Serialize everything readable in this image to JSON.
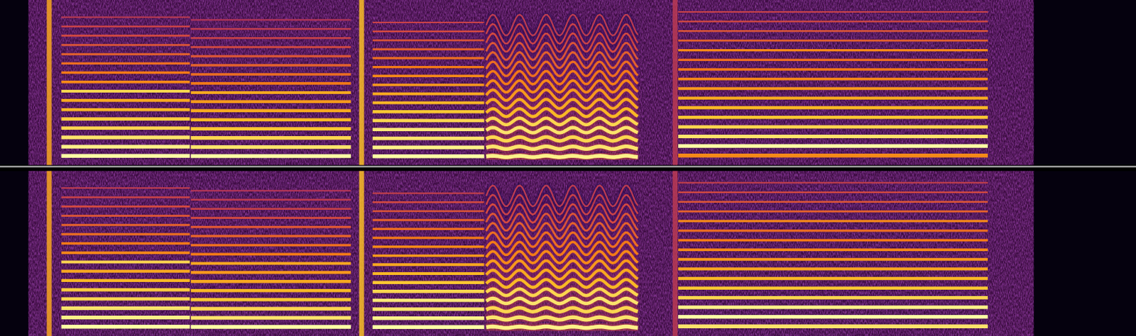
{
  "chart_data": [
    {
      "type": "spectrogram",
      "xlim": [
        0,
        1
      ],
      "ylim": [
        0,
        1
      ],
      "tick_labels": false,
      "noise": [
        {
          "start": 0.025,
          "end": 0.91,
          "level": 0.3
        }
      ],
      "transients": [
        {
          "x": 0.043,
          "level": 0.8
        },
        {
          "x": 0.318,
          "level": 0.85
        },
        {
          "x": 0.594,
          "level": 0.5
        }
      ],
      "notes": [
        {
          "start": 0.054,
          "end": 0.168,
          "f0": 0.056,
          "vibrato": 0,
          "levels": [
            1,
            0.95,
            0.9,
            0.85,
            0.82,
            0.75,
            0.7,
            0.85,
            0.6,
            0.55,
            0.5,
            0.45,
            0.4,
            0.35,
            0.3,
            0.25
          ]
        },
        {
          "start": 0.168,
          "end": 0.31,
          "f0": 0.055,
          "vibrato": 0,
          "levels": [
            1,
            0.9,
            0.85,
            0.8,
            0.75,
            0.7,
            0.65,
            0.7,
            0.55,
            0.5,
            0.45,
            0.4,
            0.35,
            0.3,
            0.25,
            0.2
          ]
        },
        {
          "start": 0.328,
          "end": 0.428,
          "f0": 0.054,
          "vibrato": 0,
          "levels": [
            1,
            0.95,
            0.9,
            0.92,
            0.85,
            0.8,
            0.75,
            0.7,
            0.65,
            0.6,
            0.55,
            0.5,
            0.45,
            0.4,
            0.35,
            0.3
          ]
        },
        {
          "start": 0.428,
          "end": 0.562,
          "f0": 0.053,
          "vibrato": 0.004,
          "levels": [
            0.95,
            0.9,
            0.85,
            0.9,
            0.85,
            0.75,
            0.7,
            0.65,
            0.6,
            0.55,
            0.5,
            0.45,
            0.4,
            0.35,
            0.3,
            0.25
          ]
        },
        {
          "start": 0.597,
          "end": 0.87,
          "f0": 0.058,
          "vibrato": 0,
          "levels": [
            0.6,
            1,
            0.9,
            0.85,
            0.8,
            0.75,
            0.7,
            0.65,
            0.6,
            0.55,
            0.5,
            0.6,
            0.45,
            0.4,
            0.35,
            0.3
          ]
        }
      ]
    },
    {
      "type": "spectrogram",
      "xlim": [
        0,
        1
      ],
      "ylim": [
        0,
        1
      ],
      "tick_labels": false,
      "noise": [
        {
          "start": 0.025,
          "end": 0.91,
          "level": 0.3
        }
      ],
      "transients": [
        {
          "x": 0.043,
          "level": 0.8
        },
        {
          "x": 0.318,
          "level": 0.85
        },
        {
          "x": 0.594,
          "level": 0.5
        }
      ],
      "notes": [
        {
          "start": 0.054,
          "end": 0.168,
          "f0": 0.056,
          "vibrato": 0,
          "levels": [
            1,
            0.95,
            0.9,
            0.85,
            0.82,
            0.75,
            0.7,
            0.85,
            0.6,
            0.55,
            0.5,
            0.45,
            0.4,
            0.35,
            0.3,
            0.25
          ]
        },
        {
          "start": 0.168,
          "end": 0.31,
          "f0": 0.055,
          "vibrato": 0,
          "levels": [
            1,
            0.9,
            0.85,
            0.8,
            0.75,
            0.7,
            0.65,
            0.7,
            0.55,
            0.5,
            0.45,
            0.4,
            0.35,
            0.3,
            0.25,
            0.2
          ]
        },
        {
          "start": 0.328,
          "end": 0.428,
          "f0": 0.054,
          "vibrato": 0,
          "levels": [
            1,
            0.95,
            0.9,
            0.92,
            0.85,
            0.8,
            0.75,
            0.7,
            0.65,
            0.6,
            0.55,
            0.5,
            0.45,
            0.4,
            0.35,
            0.3
          ]
        },
        {
          "start": 0.428,
          "end": 0.562,
          "f0": 0.053,
          "vibrato": 0.004,
          "levels": [
            0.95,
            0.9,
            0.85,
            0.9,
            0.85,
            0.75,
            0.7,
            0.65,
            0.6,
            0.55,
            0.5,
            0.45,
            0.4,
            0.35,
            0.3,
            0.25
          ]
        },
        {
          "start": 0.597,
          "end": 0.87,
          "f0": 0.058,
          "vibrato": 0,
          "levels": [
            0.9,
            1,
            0.95,
            0.85,
            0.8,
            0.75,
            0.7,
            0.65,
            0.6,
            0.55,
            0.5,
            0.6,
            0.45,
            0.4,
            0.35,
            0.3
          ]
        }
      ]
    }
  ]
}
